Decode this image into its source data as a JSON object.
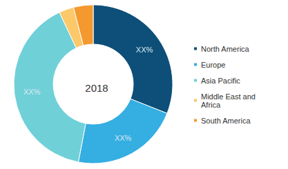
{
  "chart_data": {
    "type": "pie",
    "title": "2018",
    "categories": [
      "North America",
      "Europe",
      "Asia Pacific",
      "Middle East and Africa",
      "South America"
    ],
    "values": [
      31,
      22,
      40,
      3,
      4
    ],
    "value_labels": [
      "XX%",
      "XX%",
      "XX%",
      null,
      null
    ],
    "colors": [
      "#0d4f78",
      "#35aee2",
      "#6fd0d8",
      "#fbc86a",
      "#f4992e"
    ],
    "data_labels": true,
    "legend": "right"
  }
}
